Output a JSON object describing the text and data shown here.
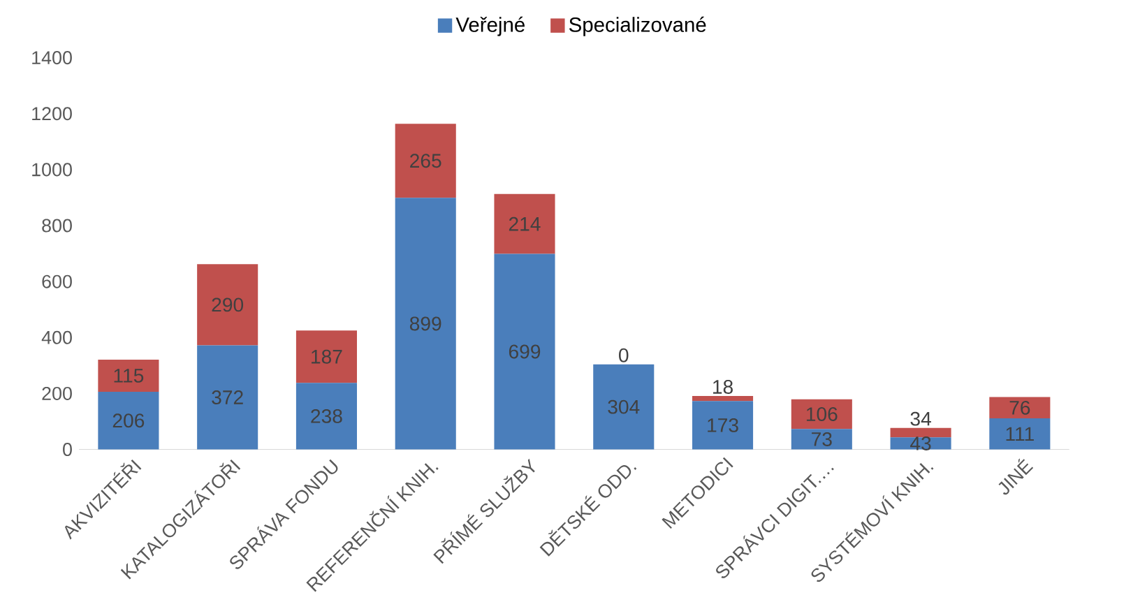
{
  "chart_data": {
    "type": "bar",
    "stacked": true,
    "data_labels": true,
    "legend": "top",
    "categories": [
      "AKVIZITÉŘI",
      "KATALOGIZÁTOŘI",
      "SPRÁVA FONDU",
      "REFERENČNÍ KNIH.",
      "PŘÍMÉ SLUŽBY",
      "DĚTSKÉ ODD.",
      "METODICI",
      "SPRÁVCI DIGIT.…",
      "SYSTÉMOVÍ KNIH.",
      "JINÉ"
    ],
    "series": [
      {
        "name": "Veřejné",
        "color": "#4a7ebb",
        "values": [
          206,
          372,
          238,
          899,
          699,
          304,
          173,
          73,
          43,
          111
        ]
      },
      {
        "name": "Specializované",
        "color": "#c0504d",
        "values": [
          115,
          290,
          187,
          265,
          214,
          0,
          18,
          106,
          34,
          76
        ]
      }
    ],
    "ylim": [
      0,
      1400
    ],
    "yticks": [
      0,
      200,
      400,
      600,
      800,
      1000,
      1200,
      1400
    ]
  }
}
